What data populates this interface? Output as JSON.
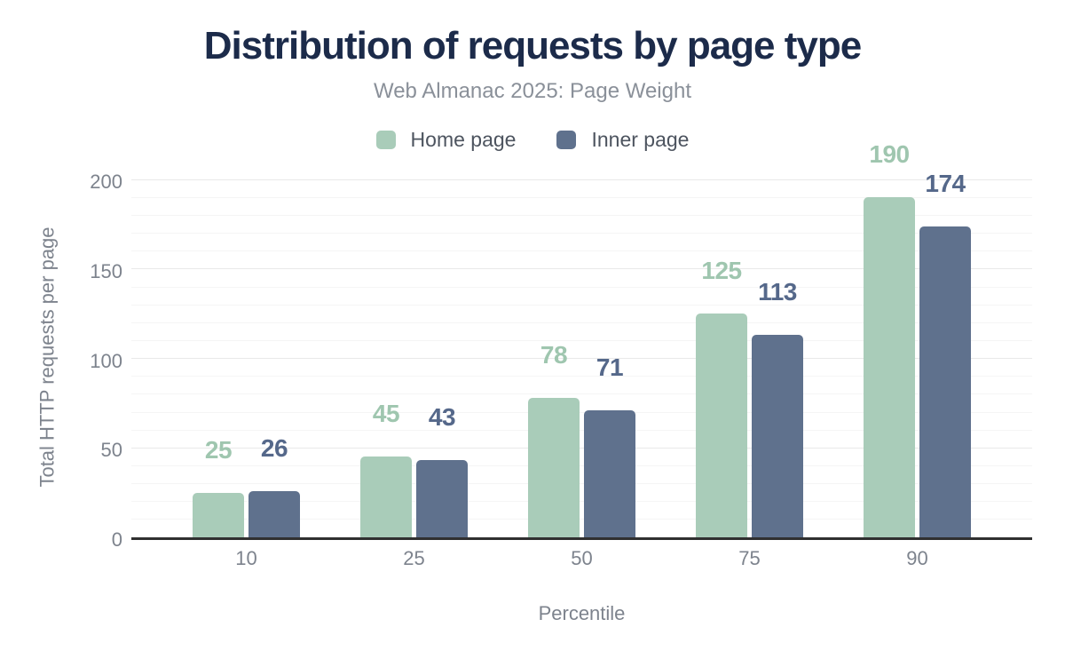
{
  "chart_data": {
    "type": "bar",
    "title": "Distribution of requests by page type",
    "subtitle": "Web Almanac 2025: Page Weight",
    "xlabel": "Percentile",
    "ylabel": "Total HTTP requests per page",
    "categories": [
      "10",
      "25",
      "50",
      "75",
      "90"
    ],
    "series": [
      {
        "name": "Home page",
        "color": "#a9ccb9",
        "label_color": "#9fc6af",
        "values": [
          25,
          45,
          78,
          125,
          190
        ]
      },
      {
        "name": "Inner page",
        "color": "#5f718d",
        "label_color": "#55688a",
        "values": [
          26,
          43,
          71,
          113,
          174
        ]
      }
    ],
    "ylim": [
      0,
      210
    ],
    "yticks": [
      0,
      50,
      100,
      150,
      200
    ],
    "grid": {
      "minor_step": 10,
      "major_step": 50,
      "minor_color": "#f5f5f5",
      "major_color": "#e9e9e9"
    },
    "legend_position": "top",
    "colors": {
      "title": "#1c2b4a",
      "subtitle": "#8a9099",
      "legend_text": "#4d545f",
      "tick_labels": "#7d838d",
      "axis_line": "#303030",
      "background": "#ffffff"
    }
  }
}
